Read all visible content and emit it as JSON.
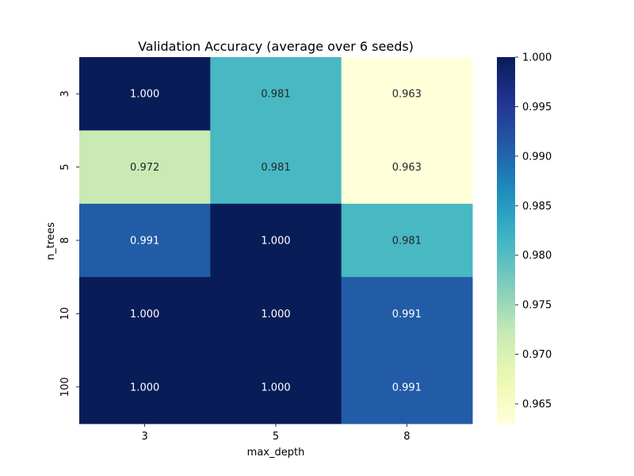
{
  "chart_data": {
    "type": "heatmap",
    "title": "Validation Accuracy (average over 6 seeds)",
    "xlabel": "max_depth",
    "ylabel": "n_trees",
    "x_categories": [
      "3",
      "5",
      "8"
    ],
    "y_categories": [
      "3",
      "5",
      "8",
      "10",
      "100"
    ],
    "values": [
      [
        1.0,
        0.981,
        0.963
      ],
      [
        0.972,
        0.981,
        0.963
      ],
      [
        0.991,
        1.0,
        0.981
      ],
      [
        1.0,
        1.0,
        0.991
      ],
      [
        1.0,
        1.0,
        0.991
      ]
    ],
    "value_format": "0.000",
    "colormap": "YlGnBu",
    "vmin": 0.963,
    "vmax": 1.0,
    "colorbar_ticks": [
      "0.965",
      "0.970",
      "0.975",
      "0.980",
      "0.985",
      "0.990",
      "0.995",
      "1.000"
    ],
    "colors": {
      "low": "#ffffd9",
      "high": "#081d58",
      "text_light": "#ffffff",
      "text_dark": "#262626"
    }
  }
}
